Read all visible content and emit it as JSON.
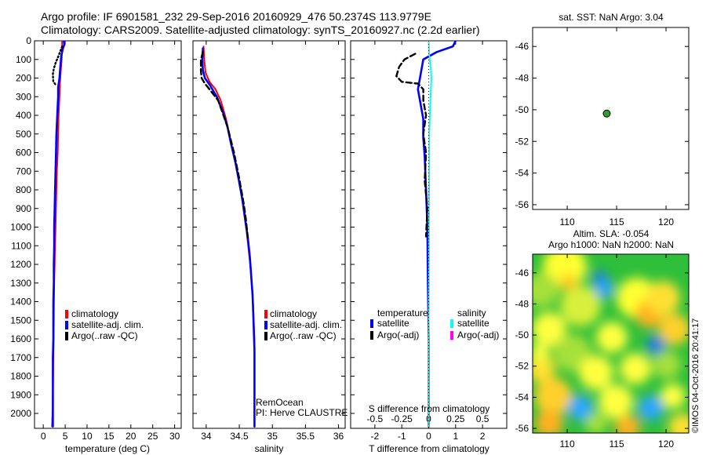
{
  "header": {
    "line1": "Argo profile: IF 6901581_232 29-Sep-2016 20160929_476 50.2374S 113.9779E",
    "line2": "Climatology: CARS2009. Satellite-adjusted climatology: synTS_20160927.nc (2.2d earlier)"
  },
  "colors": {
    "climatology": "#ff0000",
    "satellite": "#0000ff",
    "argo": "#000000",
    "sal_satellite": "#00ffff",
    "sal_argo": "#ff00ff",
    "dot": "#2e9e2e"
  },
  "chart_data": [
    {
      "type": "line",
      "id": "temperature",
      "xlabel": "temperature (deg C)",
      "ylabel": "",
      "xlim": [
        -2,
        31.5
      ],
      "ylim": [
        2080,
        0
      ],
      "xticks": [
        0,
        5,
        10,
        15,
        20,
        25,
        30
      ],
      "yticks": [
        0,
        100,
        200,
        300,
        400,
        500,
        600,
        700,
        800,
        900,
        1000,
        1100,
        1200,
        1300,
        1400,
        1500,
        1600,
        1700,
        1800,
        1900,
        2000
      ],
      "legend": {
        "placement": "lower-middle",
        "items": [
          "climatology",
          "satellite-adj. clim.",
          "Argo(..raw -QC)"
        ]
      },
      "series": [
        {
          "name": "climatology",
          "color": "#ff0000",
          "style": "solid",
          "points": [
            [
              4.3,
              0
            ],
            [
              4.3,
              40
            ],
            [
              4.2,
              100
            ],
            [
              4.0,
              160
            ],
            [
              3.8,
              230
            ],
            [
              3.7,
              300
            ],
            [
              3.5,
              400
            ],
            [
              3.4,
              500
            ],
            [
              3.3,
              600
            ],
            [
              3.1,
              700
            ],
            [
              3.0,
              800
            ],
            [
              2.9,
              900
            ],
            [
              2.8,
              1000
            ],
            [
              2.7,
              1100
            ],
            [
              2.6,
              1200
            ],
            [
              2.5,
              1300
            ],
            [
              2.45,
              1400
            ],
            [
              2.4,
              1500
            ],
            [
              2.35,
              1600
            ],
            [
              2.3,
              1700
            ],
            [
              2.25,
              1800
            ],
            [
              2.2,
              1900
            ],
            [
              2.1,
              2000
            ],
            [
              2.0,
              2070
            ]
          ]
        },
        {
          "name": "satellite-adj. clim.",
          "color": "#0000ff",
          "style": "solid",
          "points": [
            [
              4.7,
              0
            ],
            [
              4.8,
              20
            ],
            [
              4.5,
              40
            ],
            [
              4.1,
              80
            ],
            [
              3.9,
              140
            ],
            [
              3.7,
              200
            ],
            [
              3.4,
              250
            ],
            [
              3.4,
              300
            ],
            [
              3.2,
              400
            ],
            [
              3.0,
              500
            ],
            [
              2.9,
              600
            ],
            [
              2.8,
              700
            ],
            [
              2.7,
              800
            ],
            [
              2.6,
              900
            ],
            [
              2.5,
              1000
            ],
            [
              2.5,
              1100
            ],
            [
              2.4,
              1200
            ],
            [
              2.4,
              1300
            ],
            [
              2.3,
              1400
            ],
            [
              2.3,
              1500
            ],
            [
              2.3,
              1600
            ],
            [
              2.2,
              1700
            ],
            [
              2.2,
              1800
            ],
            [
              2.2,
              1900
            ],
            [
              2.2,
              2000
            ],
            [
              2.2,
              2070
            ]
          ]
        },
        {
          "name": "Argo(..raw -QC)",
          "color": "#000000",
          "style": "dotted",
          "points": [
            [
              4.3,
              30
            ],
            [
              3.5,
              80
            ],
            [
              2.8,
              120
            ],
            [
              2.4,
              150
            ],
            [
              2.2,
              180
            ],
            [
              2.3,
              220
            ],
            [
              3.0,
              240
            ]
          ]
        }
      ]
    },
    {
      "type": "line",
      "id": "salinity",
      "xlabel": "salinity",
      "xlim": [
        33.8,
        36.1
      ],
      "ylim": [
        2080,
        0
      ],
      "xticks": [
        34,
        34.5,
        35,
        35.5,
        36
      ],
      "legend": {
        "placement": "lower-right",
        "items": [
          "climatology",
          "satellite-adj. clim.",
          "Argo(..raw -QC)"
        ]
      },
      "annotation": [
        "RemOcean",
        "PI: Herve CLAUSTRE"
      ],
      "series": [
        {
          "name": "climatology",
          "color": "#ff0000",
          "style": "solid",
          "points": [
            [
              33.96,
              30
            ],
            [
              33.97,
              100
            ],
            [
              33.99,
              170
            ],
            [
              34.05,
              220
            ],
            [
              34.14,
              260
            ],
            [
              34.22,
              320
            ],
            [
              34.3,
              420
            ],
            [
              34.36,
              520
            ],
            [
              34.42,
              620
            ],
            [
              34.48,
              720
            ],
            [
              34.53,
              820
            ],
            [
              34.57,
              920
            ],
            [
              34.61,
              1020
            ],
            [
              34.64,
              1120
            ],
            [
              34.67,
              1220
            ],
            [
              34.69,
              1320
            ],
            [
              34.71,
              1420
            ],
            [
              34.72,
              1520
            ],
            [
              34.73,
              1620
            ],
            [
              34.73,
              1720
            ],
            [
              34.73,
              1820
            ],
            [
              34.73,
              1920
            ],
            [
              34.73,
              2000
            ],
            [
              34.73,
              2070
            ]
          ]
        },
        {
          "name": "satellite-adj. clim.",
          "color": "#0000ff",
          "style": "solid",
          "points": [
            [
              33.95,
              40
            ],
            [
              33.94,
              100
            ],
            [
              33.95,
              160
            ],
            [
              33.98,
              200
            ],
            [
              34.06,
              240
            ],
            [
              34.16,
              300
            ],
            [
              34.25,
              380
            ],
            [
              34.32,
              460
            ],
            [
              34.38,
              560
            ],
            [
              34.44,
              650
            ],
            [
              34.5,
              760
            ],
            [
              34.55,
              860
            ],
            [
              34.59,
              960
            ],
            [
              34.63,
              1060
            ],
            [
              34.66,
              1160
            ],
            [
              34.68,
              1260
            ],
            [
              34.7,
              1360
            ],
            [
              34.71,
              1460
            ],
            [
              34.72,
              1560
            ],
            [
              34.73,
              1660
            ],
            [
              34.73,
              1760
            ],
            [
              34.73,
              1860
            ],
            [
              34.73,
              1960
            ],
            [
              34.73,
              2070
            ]
          ]
        },
        {
          "name": "Argo(..raw -QC)",
          "color": "#000000",
          "style": "dashed",
          "points": [
            [
              33.95,
              60
            ],
            [
              33.92,
              100
            ],
            [
              33.92,
              160
            ],
            [
              33.93,
              200
            ],
            [
              33.98,
              230
            ],
            [
              34.05,
              260
            ],
            [
              34.18,
              320
            ],
            [
              34.32,
              460
            ],
            [
              34.42,
              600
            ],
            [
              34.5,
              740
            ],
            [
              34.57,
              880
            ],
            [
              34.6,
              960
            ],
            [
              34.63,
              1060
            ]
          ]
        }
      ]
    },
    {
      "type": "line",
      "id": "differences",
      "xlabel": "T difference from climatology",
      "xlabel_top": "S difference from climatology",
      "xlim": [
        -2.9,
        2.9
      ],
      "ylim": [
        2080,
        0
      ],
      "xticks": [
        -2,
        -1,
        0,
        1,
        2
      ],
      "xticks_top": [
        "-0.5",
        "-0.25",
        "0",
        "0.25",
        "0.5"
      ],
      "legend": {
        "placement": "lower-middle",
        "headers": [
          "temperature",
          "salinity"
        ],
        "items": [
          "satellite",
          "Argo(-adj)",
          "satellite",
          "Argo(-adj)"
        ]
      },
      "series": [
        {
          "name": "T satellite",
          "color": "#0000ff",
          "style": "solid",
          "points": [
            [
              1.0,
              0
            ],
            [
              0.9,
              30
            ],
            [
              0.3,
              60
            ],
            [
              -0.2,
              100
            ],
            [
              -0.3,
              180
            ],
            [
              -0.4,
              260
            ],
            [
              -0.3,
              340
            ],
            [
              -0.2,
              420
            ],
            [
              -0.2,
              520
            ],
            [
              -0.15,
              620
            ],
            [
              -0.1,
              800
            ],
            [
              -0.05,
              1000
            ],
            [
              -0.03,
              1300
            ],
            [
              0,
              1600
            ],
            [
              0,
              1900
            ],
            [
              0,
              2070
            ]
          ]
        },
        {
          "name": "T Argo(-adj)",
          "color": "#000000",
          "style": "dashed",
          "points": [
            [
              -0.5,
              70
            ],
            [
              -0.9,
              100
            ],
            [
              -1.1,
              140
            ],
            [
              -1.2,
              190
            ],
            [
              -1.0,
              220
            ],
            [
              -0.4,
              230
            ],
            [
              -0.2,
              260
            ],
            [
              -0.2,
              320
            ],
            [
              -0.1,
              400
            ],
            [
              -0.2,
              500
            ],
            [
              -0.1,
              600
            ],
            [
              -0.15,
              750
            ],
            [
              -0.05,
              900
            ],
            [
              -0.1,
              1050
            ]
          ]
        },
        {
          "name": "S satellite",
          "color": "#00ffff",
          "style": "solid",
          "points": [
            [
              0,
              0
            ],
            [
              0.02,
              80
            ],
            [
              0.08,
              150
            ],
            [
              0.1,
              200
            ],
            [
              0.07,
              300
            ],
            [
              0.04,
              400
            ],
            [
              0.02,
              500
            ],
            [
              0.02,
              700
            ],
            [
              0.01,
              900
            ],
            [
              0.01,
              1200
            ],
            [
              0,
              1600
            ],
            [
              0,
              2070
            ]
          ]
        }
      ]
    },
    {
      "type": "scatter",
      "id": "sst_map",
      "title": "sat. SST: NaN Argo: 3.04",
      "xlim": [
        106.5,
        122.3
      ],
      "ylim": [
        -56.3,
        -44.8
      ],
      "xticks": [
        110,
        115,
        120
      ],
      "yticks": [
        -46,
        -48,
        -50,
        -52,
        -54,
        -56
      ],
      "points": [
        [
          114.0,
          -50.24
        ]
      ]
    },
    {
      "type": "heatmap",
      "id": "sla_map",
      "title_line1": "Altim. SLA: -0.054",
      "title_line2": "Argo h1000: NaN h2000: NaN",
      "xlim": [
        106.5,
        122.3
      ],
      "ylim": [
        -56.3,
        -44.8
      ],
      "xticks": [
        110,
        115,
        120
      ],
      "yticks": [
        -46,
        -48,
        -50,
        -52,
        -54,
        -56
      ],
      "side_label": "©IMOS 04-Oct-2016 20:41:17"
    }
  ]
}
